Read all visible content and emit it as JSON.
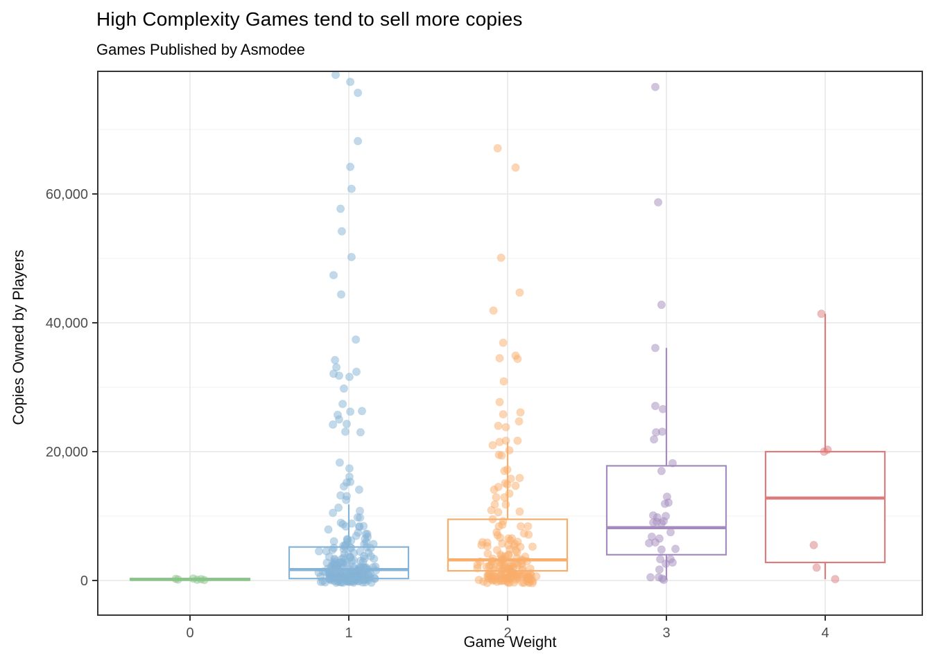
{
  "header": {
    "title": "High Complexity Games tend to sell more copies",
    "subtitle": "Games Published by Asmodee"
  },
  "chart_data": {
    "type": "boxplot_jitter",
    "title": "High Complexity Games tend to sell more copies",
    "subtitle": "Games Published by Asmodee",
    "xlabel": "Game Weight",
    "ylabel": "Copies Owned by Players",
    "categories": [
      "0",
      "1",
      "2",
      "3",
      "4"
    ],
    "ylim": [
      -5300,
      79000
    ],
    "y_major_ticks": [
      {
        "value": 0,
        "label": "0"
      },
      {
        "value": 20000,
        "label": "20,000"
      },
      {
        "value": 40000,
        "label": "40,000"
      },
      {
        "value": 60000,
        "label": "60,000"
      }
    ],
    "y_minor_ticks": [
      10000,
      30000,
      50000,
      70000
    ],
    "grid": true,
    "legend": "none",
    "point_alpha": 0.5,
    "groups": [
      {
        "category": "0",
        "color": "#8ac48a",
        "box": {
          "q1": 60,
          "median": 160,
          "q3": 300,
          "whisker_low": 0,
          "whisker_high": 450
        },
        "points": [
          [
            -0.09,
            250
          ],
          [
            -0.075,
            150
          ],
          [
            0.02,
            300
          ],
          [
            0.045,
            120
          ],
          [
            0.07,
            200
          ],
          [
            0.09,
            80
          ]
        ],
        "dense_clusters": []
      },
      {
        "category": "1",
        "color": "#85b4d6",
        "box": {
          "q1": 300,
          "median": 1700,
          "q3": 5200,
          "whisker_low": 0,
          "whisker_high": 11800
        },
        "points": [
          [
            -0.083,
            78500
          ],
          [
            0.009,
            77400
          ],
          [
            0.057,
            75700
          ],
          [
            0.057,
            68200
          ],
          [
            0.009,
            64200
          ],
          [
            0.017,
            60800
          ],
          [
            -0.052,
            57700
          ],
          [
            -0.044,
            54200
          ],
          [
            0.017,
            50200
          ],
          [
            -0.096,
            47400
          ],
          [
            -0.048,
            44400
          ],
          [
            0.044,
            37400
          ],
          [
            -0.087,
            34200
          ],
          [
            -0.078,
            33100
          ],
          [
            0.048,
            32400
          ],
          [
            -0.096,
            32100
          ],
          [
            -0.061,
            31800
          ],
          [
            0.004,
            31600
          ],
          [
            -0.031,
            29800
          ],
          [
            -0.039,
            27400
          ],
          [
            0.083,
            26300
          ],
          [
            0.009,
            26200
          ],
          [
            -0.07,
            25700
          ],
          [
            -0.061,
            25000
          ],
          [
            -0.013,
            24300
          ],
          [
            -0.1,
            24200
          ],
          [
            -0.022,
            23100
          ],
          [
            0.074,
            23000
          ],
          [
            -0.057,
            18300
          ],
          [
            0.004,
            17400
          ],
          [
            0.004,
            16100
          ],
          [
            0.009,
            15300
          ],
          [
            -0.013,
            15200
          ],
          [
            -0.031,
            14600
          ],
          [
            0.065,
            14100
          ],
          [
            -0.052,
            13200
          ],
          [
            -0.013,
            13100
          ],
          [
            -0.017,
            12500
          ],
          [
            -0.065,
            11300
          ],
          [
            0.07,
            10800
          ],
          [
            -0.1,
            10500
          ]
        ],
        "dense_clusters": [
          {
            "count": 10,
            "min": 7500,
            "max": 10200,
            "spread": 0.16
          },
          {
            "count": 15,
            "min": 5500,
            "max": 7500,
            "spread": 0.16
          },
          {
            "count": 30,
            "min": 3000,
            "max": 5500,
            "spread": 0.17
          },
          {
            "count": 55,
            "min": 1000,
            "max": 3000,
            "spread": 0.17
          },
          {
            "count": 90,
            "min": -400,
            "max": 1000,
            "spread": 0.17
          }
        ]
      },
      {
        "category": "2",
        "color": "#f9ae6b",
        "box": {
          "q1": 1500,
          "median": 3200,
          "q3": 9500,
          "whisker_low": 0,
          "whisker_high": 21500
        },
        "points": [
          [
            -0.063,
            67100
          ],
          [
            0.05,
            64100
          ],
          [
            -0.041,
            50100
          ],
          [
            0.076,
            44700
          ],
          [
            -0.089,
            41900
          ],
          [
            -0.028,
            36900
          ],
          [
            0.05,
            34900
          ],
          [
            -0.05,
            34500
          ],
          [
            0.063,
            34400
          ],
          [
            -0.024,
            30900
          ],
          [
            -0.05,
            27700
          ],
          [
            0.081,
            26100
          ],
          [
            -0.028,
            25800
          ],
          [
            0.072,
            24700
          ],
          [
            -0.059,
            24000
          ],
          [
            -0.011,
            23800
          ],
          [
            -0.011,
            21700
          ],
          [
            0.063,
            21700
          ],
          [
            -0.05,
            21500
          ],
          [
            -0.094,
            21000
          ],
          [
            0.011,
            20200
          ],
          [
            -0.054,
            19500
          ],
          [
            -0.037,
            19400
          ],
          [
            -0.002,
            17200
          ],
          [
            -0.02,
            17000
          ],
          [
            0.076,
            15900
          ],
          [
            0.02,
            15800
          ],
          [
            -0.015,
            15100
          ],
          [
            -0.002,
            14900
          ],
          [
            0.05,
            14700
          ],
          [
            -0.059,
            14500
          ],
          [
            -0.085,
            14100
          ],
          [
            0.011,
            13500
          ],
          [
            -0.072,
            12900
          ],
          [
            -0.02,
            12900
          ],
          [
            -0.081,
            11800
          ],
          [
            -0.011,
            11800
          ],
          [
            -0.102,
            10900
          ],
          [
            0.076,
            10700
          ],
          [
            -0.059,
            10600
          ],
          [
            -0.094,
            9500
          ],
          [
            -0.028,
            9200
          ]
        ],
        "dense_clusters": [
          {
            "count": 12,
            "min": 6000,
            "max": 9000,
            "spread": 0.17
          },
          {
            "count": 22,
            "min": 3500,
            "max": 6000,
            "spread": 0.18
          },
          {
            "count": 45,
            "min": 1200,
            "max": 3500,
            "spread": 0.18
          },
          {
            "count": 70,
            "min": -400,
            "max": 1200,
            "spread": 0.18
          }
        ]
      },
      {
        "category": "3",
        "color": "#a48bbd",
        "box": {
          "q1": 4000,
          "median": 8200,
          "q3": 17800,
          "whisker_low": 100,
          "whisker_high": 36100
        },
        "points": [
          [
            -0.07,
            76600
          ],
          [
            -0.052,
            58700
          ],
          [
            -0.031,
            42800
          ],
          [
            -0.07,
            36100
          ],
          [
            -0.07,
            27100
          ],
          [
            -0.022,
            26600
          ],
          [
            -0.026,
            23100
          ],
          [
            -0.065,
            23000
          ],
          [
            -0.078,
            21900
          ],
          [
            0.039,
            18200
          ],
          [
            -0.031,
            17000
          ],
          [
            0.004,
            13000
          ],
          [
            0.013,
            12100
          ],
          [
            -0.009,
            11900
          ],
          [
            -0.083,
            10100
          ],
          [
            -0.004,
            10000
          ],
          [
            -0.057,
            9800
          ],
          [
            -0.017,
            9200
          ],
          [
            -0.061,
            9100
          ],
          [
            -0.083,
            9000
          ],
          [
            -0.031,
            8900
          ],
          [
            0.026,
            7500
          ],
          [
            -0.092,
            6800
          ],
          [
            -0.044,
            6500
          ],
          [
            -0.07,
            5900
          ],
          [
            -0.109,
            5800
          ],
          [
            0.057,
            4900
          ],
          [
            -0.031,
            4800
          ],
          [
            -0.039,
            3300
          ],
          [
            0.026,
            3300
          ],
          [
            0.039,
            2800
          ],
          [
            -0.004,
            2600
          ],
          [
            -0.044,
            1700
          ],
          [
            -0.1,
            500
          ],
          [
            -0.048,
            500
          ],
          [
            -0.026,
            300
          ],
          [
            -0.017,
            100
          ]
        ],
        "dense_clusters": []
      },
      {
        "category": "4",
        "color": "#dd7c7c",
        "box": {
          "q1": 2800,
          "median": 12800,
          "q3": 20000,
          "whisker_low": 200,
          "whisker_high": 41400
        },
        "points": [
          [
            -0.024,
            41400
          ],
          [
            0.015,
            20300
          ],
          [
            -0.007,
            20000
          ],
          [
            -0.072,
            5500
          ],
          [
            -0.054,
            2000
          ],
          [
            0.063,
            200
          ]
        ],
        "dense_clusters": []
      }
    ],
    "style": {
      "panel_border_color": "#343434",
      "major_grid_color": "#e7e7e7",
      "minor_grid_color": "#f2f2f2",
      "tick_color": "#333333",
      "tick_label_color": "#4d4d4d"
    }
  }
}
